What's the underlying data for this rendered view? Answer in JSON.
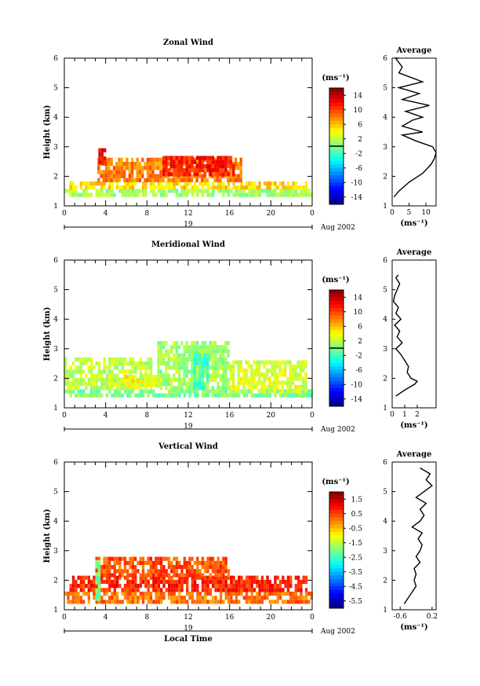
{
  "figure": {
    "local_time_label": "Local Time",
    "time_unit_label": "(ms⁻¹)",
    "date_label": "Aug 2002",
    "day_label": "19"
  },
  "chart_data": [
    {
      "type": "heatmap",
      "title": "Zonal Wind",
      "xlabel": "",
      "ylabel": "Height (km)",
      "xlim": [
        0,
        24
      ],
      "ylim": [
        1,
        6
      ],
      "x_ticks": [
        "0",
        "4",
        "8",
        "12",
        "16",
        "20",
        "0"
      ],
      "y_ticks": [
        "1",
        "2",
        "3",
        "4",
        "5",
        "6"
      ],
      "colorbar": {
        "label": "(ms⁻¹)",
        "ticks": [
          "14",
          "10",
          "6",
          "2",
          "-2",
          "-6",
          "-10",
          "-14"
        ],
        "range": [
          -16,
          16
        ],
        "zero_line": 0
      },
      "date_label": "Aug 2002",
      "day_label": "19",
      "regions": [
        {
          "t0": 0.0,
          "t1": 24.0,
          "h0": 1.3,
          "h1": 1.55,
          "value": 1
        },
        {
          "t0": 0.5,
          "t1": 23.5,
          "h0": 1.55,
          "h1": 1.8,
          "value": 5
        },
        {
          "t0": 3.2,
          "t1": 17.0,
          "h0": 1.8,
          "h1": 2.5,
          "value": 8
        },
        {
          "t0": 9.5,
          "t1": 16.5,
          "h0": 2.0,
          "h1": 2.6,
          "value": 11
        },
        {
          "t0": 3.3,
          "t1": 4.0,
          "h0": 2.4,
          "h1": 2.9,
          "value": 12
        }
      ],
      "average_panel": {
        "title": "Average",
        "xlabel": "(ms⁻¹)",
        "xlim": [
          0,
          13
        ],
        "x_ticks": [
          "0",
          "5",
          "10"
        ],
        "x_tick_values": [
          0,
          5,
          10
        ],
        "ylim": [
          1,
          6
        ],
        "y_ticks": [
          "1",
          "2",
          "3",
          "4",
          "5",
          "6"
        ],
        "profile_height": [
          1.3,
          1.5,
          1.8,
          2.1,
          2.4,
          2.6,
          2.8,
          3.0,
          3.2,
          3.4,
          3.5,
          3.7,
          3.9,
          4.0,
          4.2,
          4.4,
          4.6,
          4.8,
          5.0,
          5.2,
          5.5,
          5.7,
          6.0,
          6.3,
          6.5,
          6.7,
          6.9
        ],
        "profile_value": [
          0.5,
          2.0,
          5.0,
          9.0,
          11.5,
          12.5,
          13.0,
          12.0,
          7.0,
          3.0,
          9.0,
          3.0,
          6.0,
          9.0,
          4.0,
          11.0,
          3.0,
          8.0,
          2.0,
          9.0,
          2.0,
          3.0,
          1.0,
          2.0,
          1.0,
          1.5,
          1.0
        ]
      }
    },
    {
      "type": "heatmap",
      "title": "Meridional Wind",
      "xlabel": "",
      "ylabel": "Height (km)",
      "xlim": [
        0,
        24
      ],
      "ylim": [
        1,
        6
      ],
      "x_ticks": [
        "0",
        "4",
        "8",
        "12",
        "16",
        "20",
        "0"
      ],
      "y_ticks": [
        "1",
        "2",
        "3",
        "4",
        "5",
        "6"
      ],
      "colorbar": {
        "label": "(ms⁻¹)",
        "ticks": [
          "14",
          "10",
          "6",
          "2",
          "-2",
          "-6",
          "-10",
          "-14"
        ],
        "range": [
          -16,
          16
        ],
        "zero_line": 0
      },
      "date_label": "Aug 2002",
      "day_label": "19",
      "regions": [
        {
          "t0": 0.0,
          "t1": 24.0,
          "h0": 1.35,
          "h1": 1.6,
          "value": 0
        },
        {
          "t0": 0.0,
          "t1": 8.5,
          "h0": 1.6,
          "h1": 2.6,
          "value": 2
        },
        {
          "t0": 4.5,
          "t1": 9.5,
          "h0": 1.7,
          "h1": 2.1,
          "value": 4
        },
        {
          "t0": 9.0,
          "t1": 16.0,
          "h0": 1.6,
          "h1": 3.2,
          "value": 1
        },
        {
          "t0": 12.5,
          "t1": 14.0,
          "h0": 1.6,
          "h1": 2.8,
          "value": -2
        },
        {
          "t0": 16.0,
          "t1": 23.5,
          "h0": 1.5,
          "h1": 2.5,
          "value": 3
        }
      ],
      "average_panel": {
        "title": "Average",
        "xlabel": "(ms⁻¹)",
        "xlim": [
          0,
          3.5
        ],
        "x_ticks": [
          "0",
          "1",
          "2"
        ],
        "x_tick_values": [
          0,
          1,
          2
        ],
        "ylim": [
          1,
          6
        ],
        "y_ticks": [
          "1",
          "2",
          "3",
          "4",
          "5",
          "6"
        ],
        "profile_height": [
          1.4,
          1.6,
          1.8,
          1.9,
          2.0,
          2.2,
          2.4,
          2.6,
          2.8,
          3.0,
          3.2,
          3.4,
          3.6,
          3.8,
          4.0,
          4.2,
          4.4,
          4.6,
          4.8,
          5.0,
          5.2,
          5.4,
          5.5
        ],
        "profile_value": [
          0.3,
          1.0,
          1.8,
          2.0,
          1.5,
          1.2,
          1.3,
          1.0,
          0.7,
          0.3,
          0.8,
          0.4,
          0.6,
          0.2,
          0.7,
          0.3,
          0.5,
          0.1,
          0.2,
          0.4,
          0.6,
          0.3,
          0.5
        ]
      }
    },
    {
      "type": "heatmap",
      "title": "Vertical Wind",
      "xlabel": "Local Time",
      "ylabel": "Height (km)",
      "xlim": [
        0,
        24
      ],
      "ylim": [
        1,
        6
      ],
      "x_ticks": [
        "0",
        "4",
        "8",
        "12",
        "16",
        "20",
        "0"
      ],
      "y_ticks": [
        "1",
        "2",
        "3",
        "4",
        "5",
        "6"
      ],
      "colorbar": {
        "label": "(ms⁻¹)",
        "ticks": [
          "1.5",
          "0.5",
          "-0.5",
          "-1.5",
          "-2.5",
          "-3.5",
          "-4.5",
          "-5.5"
        ],
        "range": [
          -6,
          2
        ],
        "zero_line": null
      },
      "date_label": "Aug 2002",
      "day_label": "19",
      "regions": [
        {
          "t0": 0.0,
          "t1": 24.0,
          "h0": 1.2,
          "h1": 1.6,
          "value": 0.1
        },
        {
          "t0": 0.5,
          "t1": 23.5,
          "h0": 1.6,
          "h1": 2.1,
          "value": 0.7
        },
        {
          "t0": 3.0,
          "t1": 16.0,
          "h0": 2.1,
          "h1": 2.7,
          "value": 0.4
        },
        {
          "t0": 3.0,
          "t1": 3.4,
          "h0": 1.3,
          "h1": 2.6,
          "value": -2.0
        }
      ],
      "average_panel": {
        "title": "Average",
        "xlabel": "(ms⁻¹)",
        "xlim": [
          -0.8,
          0.3
        ],
        "x_ticks": [
          "-0.6",
          "0.2"
        ],
        "x_tick_values": [
          -0.6,
          0.2
        ],
        "ylim": [
          1,
          6
        ],
        "y_ticks": [
          "1",
          "2",
          "3",
          "4",
          "5",
          "6"
        ],
        "profile_height": [
          1.2,
          1.4,
          1.6,
          1.8,
          2.0,
          2.2,
          2.4,
          2.6,
          2.8,
          3.0,
          3.2,
          3.4,
          3.6,
          3.8,
          4.0,
          4.2,
          4.4,
          4.6,
          4.8,
          5.0,
          5.2,
          5.4,
          5.6,
          5.8
        ],
        "profile_value": [
          -0.5,
          -0.4,
          -0.3,
          -0.2,
          -0.25,
          -0.2,
          -0.25,
          -0.1,
          -0.2,
          -0.1,
          -0.05,
          -0.15,
          -0.05,
          -0.3,
          -0.1,
          0.0,
          -0.1,
          0.05,
          -0.2,
          0.0,
          0.2,
          0.05,
          0.15,
          -0.1
        ]
      }
    }
  ]
}
